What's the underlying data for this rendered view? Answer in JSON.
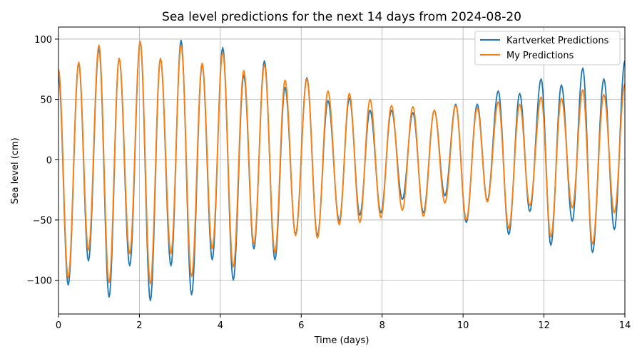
{
  "chart_data": {
    "type": "line",
    "title": "Sea level predictions for the next 14 days from 2024-08-20",
    "xlabel": "Time (days)",
    "ylabel": "Sea level (cm)",
    "xlim": [
      0,
      14
    ],
    "ylim": [
      -128,
      110
    ],
    "x_ticks": [
      0,
      2,
      4,
      6,
      8,
      10,
      12,
      14
    ],
    "x_tick_labels": [
      "0",
      "2",
      "4",
      "6",
      "8",
      "10",
      "12",
      "14"
    ],
    "y_ticks": [
      -100,
      -50,
      0,
      50,
      100
    ],
    "y_tick_labels": [
      "−100",
      "−50",
      "0",
      "50",
      "100"
    ],
    "grid": true,
    "legend_position": "top-right",
    "series": [
      {
        "name": "Kartverket Predictions",
        "color": "#1f77b4",
        "x": [
          0.0,
          0.24,
          0.5,
          0.74,
          1.0,
          1.25,
          1.5,
          1.76,
          2.02,
          2.27,
          2.52,
          2.78,
          3.03,
          3.29,
          3.55,
          3.8,
          4.06,
          4.32,
          4.58,
          4.83,
          5.09,
          5.35,
          5.6,
          5.86,
          6.14,
          6.4,
          6.66,
          6.94,
          7.19,
          7.45,
          7.7,
          7.97,
          8.23,
          8.5,
          8.76,
          9.02,
          9.29,
          9.55,
          9.82,
          10.08,
          10.35,
          10.6,
          10.87,
          11.13,
          11.4,
          11.65,
          11.93,
          12.17,
          12.43,
          12.7,
          12.96,
          13.2,
          13.48,
          13.74,
          14.0
        ],
        "y": [
          70,
          -104,
          80,
          -84,
          92,
          -114,
          84,
          -88,
          98,
          -117,
          84,
          -88,
          99,
          -112,
          79,
          -83,
          93,
          -100,
          70,
          -74,
          82,
          -83,
          60,
          -62,
          68,
          -63,
          49,
          -51,
          51,
          -46,
          41,
          -44,
          41,
          -33,
          39,
          -44,
          41,
          -30,
          46,
          -52,
          46,
          -34,
          57,
          -62,
          55,
          -43,
          67,
          -71,
          62,
          -51,
          76,
          -77,
          67,
          -58,
          82
        ]
      },
      {
        "name": "My Predictions",
        "color": "#ff7f0e",
        "x": [
          0.0,
          0.24,
          0.5,
          0.74,
          1.0,
          1.25,
          1.5,
          1.76,
          2.02,
          2.27,
          2.52,
          2.78,
          3.03,
          3.29,
          3.55,
          3.8,
          4.06,
          4.32,
          4.58,
          4.83,
          5.09,
          5.35,
          5.6,
          5.86,
          6.14,
          6.4,
          6.66,
          6.94,
          7.19,
          7.45,
          7.7,
          7.97,
          8.23,
          8.5,
          8.76,
          9.02,
          9.29,
          9.55,
          9.82,
          10.08,
          10.35,
          10.6,
          10.87,
          11.13,
          11.4,
          11.65,
          11.93,
          12.17,
          12.43,
          12.7,
          12.96,
          13.2,
          13.48,
          13.74,
          14.0
        ],
        "y": [
          75,
          -98,
          81,
          -75,
          95,
          -102,
          84,
          -78,
          98,
          -103,
          84,
          -78,
          95,
          -97,
          80,
          -74,
          89,
          -89,
          74,
          -70,
          79,
          -77,
          66,
          -63,
          67,
          -65,
          57,
          -54,
          55,
          -52,
          50,
          -48,
          45,
          -42,
          44,
          -47,
          41,
          -36,
          45,
          -50,
          43,
          -35,
          48,
          -57,
          46,
          -38,
          52,
          -64,
          51,
          -40,
          58,
          -70,
          54,
          -44,
          63
        ]
      }
    ]
  }
}
